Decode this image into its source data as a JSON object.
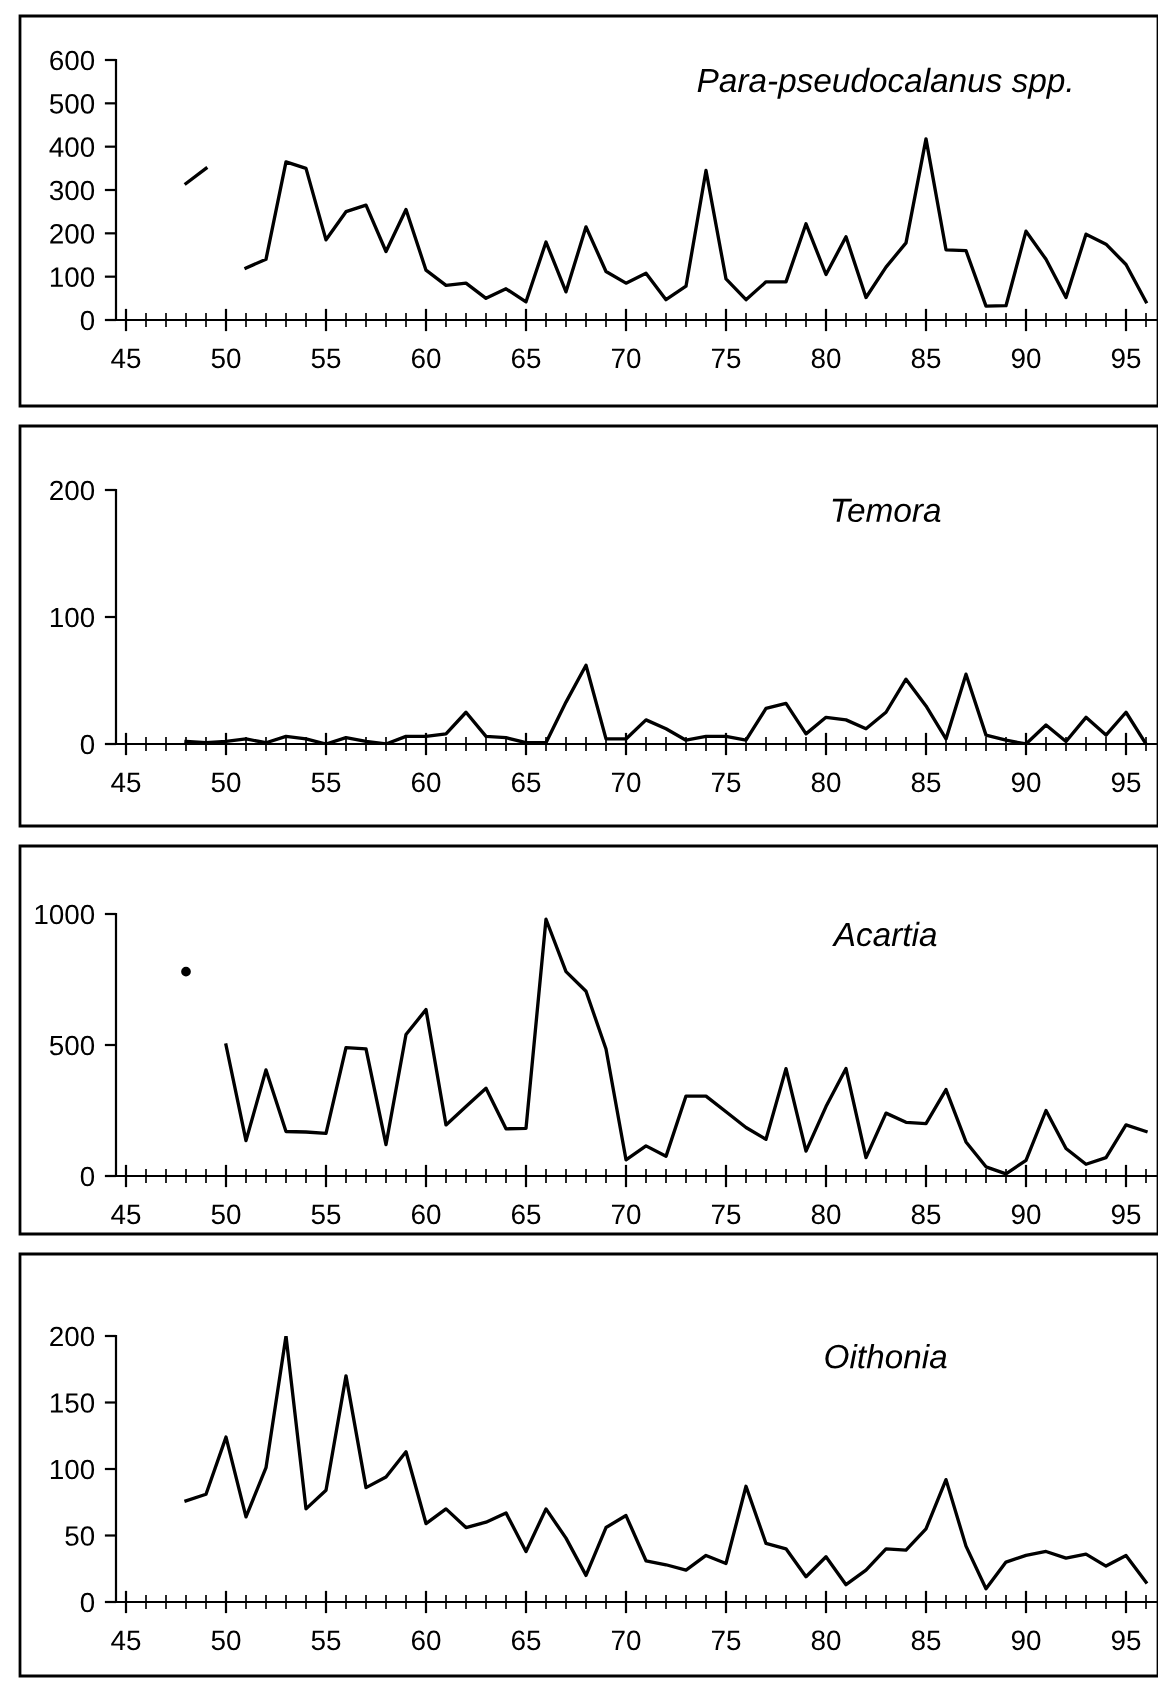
{
  "chart_data": [
    {
      "type": "line",
      "title": "Para-pseudocalanus spp.",
      "x": [
        48,
        49,
        50,
        51,
        52,
        53,
        54,
        55,
        56,
        57,
        58,
        59,
        60,
        61,
        62,
        63,
        64,
        65,
        66,
        67,
        68,
        69,
        70,
        71,
        72,
        73,
        74,
        75,
        76,
        77,
        78,
        79,
        80,
        81,
        82,
        83,
        84,
        85,
        86,
        87,
        88,
        89,
        90,
        91,
        92,
        93,
        94,
        95,
        96
      ],
      "series": [
        {
          "color": "#000000",
          "values": [
            315,
            350,
            null,
            120,
            140,
            365,
            350,
            185,
            250,
            265,
            158,
            255,
            115,
            80,
            85,
            50,
            72,
            42,
            180,
            65,
            215,
            112,
            85,
            108,
            47,
            78,
            345,
            95,
            47,
            88,
            88,
            222,
            105,
            192,
            52,
            122,
            178,
            418,
            162,
            160,
            32,
            33,
            205,
            140,
            52,
            198,
            175,
            128,
            42
          ]
        }
      ],
      "xlim": [
        44.5,
        96.5
      ],
      "xticks": [
        45,
        50,
        55,
        60,
        65,
        70,
        75,
        80,
        85,
        90,
        95
      ],
      "ylim": [
        0,
        600
      ],
      "yticks": [
        0,
        100,
        200,
        300,
        400,
        500,
        600
      ],
      "marker": "none",
      "line_style": "solid"
    },
    {
      "type": "line",
      "title": "Temora",
      "x": [
        48,
        49,
        50,
        51,
        52,
        53,
        54,
        55,
        56,
        57,
        58,
        59,
        60,
        61,
        62,
        63,
        64,
        65,
        66,
        67,
        68,
        69,
        70,
        71,
        72,
        73,
        74,
        75,
        76,
        77,
        78,
        79,
        80,
        81,
        82,
        83,
        84,
        85,
        86,
        87,
        88,
        89,
        90,
        91,
        92,
        93,
        94,
        95,
        96
      ],
      "series": [
        {
          "color": "#000000",
          "values": [
            2,
            1,
            2,
            4,
            1,
            6,
            4,
            0,
            5,
            2,
            0,
            6,
            6,
            8,
            25,
            6,
            5,
            1,
            1,
            33,
            62,
            4,
            4,
            19,
            12,
            3,
            6,
            6,
            3,
            28,
            32,
            8,
            21,
            19,
            12,
            25,
            51,
            30,
            4,
            55,
            7,
            3,
            0,
            15,
            2,
            21,
            7,
            25,
            0
          ]
        }
      ],
      "xlim": [
        44.5,
        96.5
      ],
      "xticks": [
        45,
        50,
        55,
        60,
        65,
        70,
        75,
        80,
        85,
        90,
        95
      ],
      "ylim": [
        0,
        200
      ],
      "yticks": [
        0,
        100,
        200
      ],
      "marker": "none",
      "line_style": "solid"
    },
    {
      "type": "line",
      "title": "Acartia",
      "x": [
        48,
        49,
        50,
        51,
        52,
        53,
        54,
        55,
        56,
        57,
        58,
        59,
        60,
        61,
        62,
        63,
        64,
        65,
        66,
        67,
        68,
        69,
        70,
        71,
        72,
        73,
        74,
        75,
        76,
        77,
        78,
        79,
        80,
        81,
        82,
        83,
        84,
        85,
        86,
        87,
        88,
        89,
        90,
        91,
        92,
        93,
        94,
        95,
        96
      ],
      "series": [
        {
          "color": "#000000",
          "values": [
            780,
            null,
            500,
            135,
            405,
            170,
            168,
            163,
            490,
            485,
            120,
            540,
            635,
            195,
            265,
            335,
            180,
            182,
            980,
            780,
            705,
            485,
            62,
            115,
            75,
            305,
            305,
            245,
            185,
            140,
            410,
            95,
            265,
            410,
            70,
            240,
            205,
            200,
            330,
            130,
            35,
            8,
            60,
            250,
            105,
            45,
            70,
            195,
            170
          ]
        }
      ],
      "xlim": [
        44.5,
        96.5
      ],
      "xticks": [
        45,
        50,
        55,
        60,
        65,
        70,
        75,
        80,
        85,
        90,
        95
      ],
      "ylim": [
        0,
        1000
      ],
      "yticks": [
        0,
        500,
        1000
      ],
      "marker": "none",
      "line_style": "solid"
    },
    {
      "type": "line",
      "title": "Oithonia",
      "x": [
        48,
        49,
        50,
        51,
        52,
        53,
        54,
        55,
        56,
        57,
        58,
        59,
        60,
        61,
        62,
        63,
        64,
        65,
        66,
        67,
        68,
        69,
        70,
        71,
        72,
        73,
        74,
        75,
        76,
        77,
        78,
        79,
        80,
        81,
        82,
        83,
        84,
        85,
        86,
        87,
        88,
        89,
        90,
        91,
        92,
        93,
        94,
        95,
        96
      ],
      "series": [
        {
          "color": "#000000",
          "values": [
            76,
            81,
            124,
            64,
            101,
            200,
            70,
            84,
            170,
            86,
            94,
            113,
            59,
            70,
            56,
            60,
            67,
            38,
            70,
            48,
            20,
            56,
            65,
            31,
            28,
            24,
            35,
            29,
            87,
            44,
            40,
            19,
            34,
            13,
            24,
            40,
            39,
            55,
            92,
            42,
            10,
            30,
            35,
            38,
            33,
            36,
            27,
            35,
            15
          ]
        }
      ],
      "xlim": [
        44.5,
        96.5
      ],
      "xticks": [
        45,
        50,
        55,
        60,
        65,
        70,
        75,
        80,
        85,
        90,
        95
      ],
      "ylim": [
        0,
        200
      ],
      "yticks": [
        0,
        50,
        100,
        150,
        200
      ],
      "marker": "none",
      "line_style": "solid"
    }
  ]
}
